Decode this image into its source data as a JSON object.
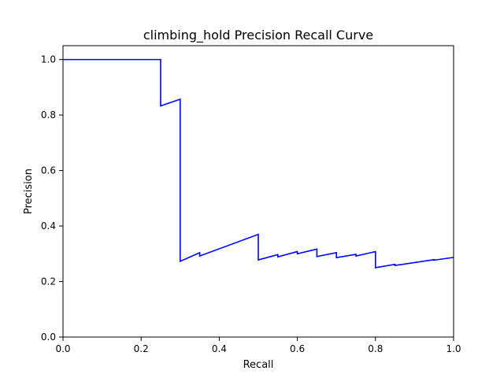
{
  "chart_data": {
    "type": "line",
    "title": "climbing_hold Precision Recall Curve",
    "xlabel": "Recall",
    "ylabel": "Precision",
    "xlim": [
      0.0,
      1.0
    ],
    "ylim": [
      0.0,
      1.05
    ],
    "xticks": [
      "0.0",
      "0.2",
      "0.4",
      "0.6",
      "0.8",
      "1.0"
    ],
    "yticks": [
      "0.0",
      "0.2",
      "0.4",
      "0.6",
      "0.8",
      "1.0"
    ],
    "grid": false,
    "series": [
      {
        "color": "#0000ff",
        "x": [
          0.0,
          0.25,
          0.25,
          0.3,
          0.3,
          0.35,
          0.35,
          0.5,
          0.5,
          0.55,
          0.55,
          0.6,
          0.6,
          0.65,
          0.65,
          0.7,
          0.7,
          0.75,
          0.75,
          0.8,
          0.8,
          0.85,
          0.85,
          0.95,
          0.95,
          1.0
        ],
        "y": [
          1.0,
          1.0,
          0.833,
          0.857,
          0.273,
          0.304,
          0.292,
          0.37,
          0.278,
          0.297,
          0.289,
          0.308,
          0.3,
          0.317,
          0.29,
          0.304,
          0.286,
          0.298,
          0.292,
          0.308,
          0.25,
          0.262,
          0.258,
          0.279,
          0.277,
          0.287
        ]
      }
    ]
  }
}
